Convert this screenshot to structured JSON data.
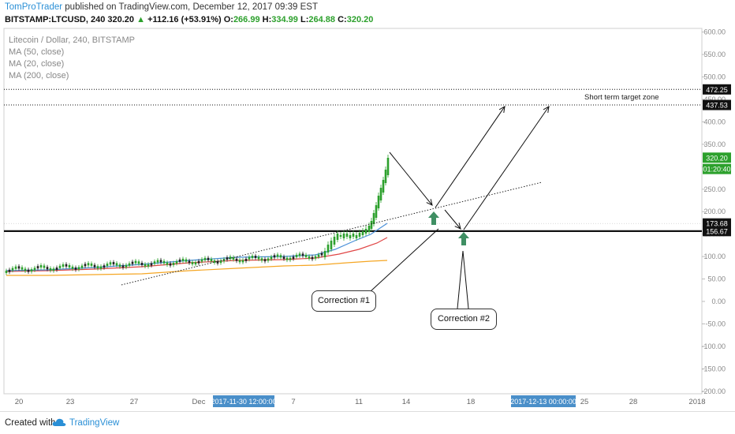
{
  "header": {
    "author": "TomProTrader",
    "published": "published on TradingView.com, December 12, 2017 09:39 EST",
    "symbol": "BITSTAMP:LTCUSD, 240",
    "last": "320.20",
    "change_arrow": "▲",
    "change": "+112.16 (+53.91%)",
    "o_label": "O:",
    "o_val": "266.99",
    "h_label": "H:",
    "h_val": "334.99",
    "l_label": "L:",
    "l_val": "264.88",
    "c_label": "C:",
    "c_val": "320.20"
  },
  "legend": {
    "title": "Litecoin / Dollar, 240, BITSTAMP",
    "ma50": "MA (50, close)",
    "ma20": "MA (20, close)",
    "ma200": "MA (200, close)"
  },
  "annotations": {
    "target_zone": "Short term target zone",
    "correction1": "Correction #1",
    "correction2": "Correction #2"
  },
  "footer": {
    "created_with": "Created with",
    "brand": "TradingView"
  },
  "colors": {
    "up": "#2ca02c",
    "down": "#222222",
    "ma50": "#e04646",
    "ma20": "#4a90d9",
    "ma200": "#f5a623",
    "arrow_green": "#3f8f63",
    "price_badge_bg": "#2ca02c",
    "axis_highlight": "#4a8fc9"
  },
  "chart_data": {
    "type": "candlestick",
    "y_ticks": [
      "600.00",
      "550.00",
      "500.00",
      "450.00",
      "400.00",
      "350.00",
      "300.00",
      "250.00",
      "200.00",
      "150.00",
      "100.00",
      "50.00",
      "0.00",
      "-50.00",
      "-100.00",
      "-150.00",
      "-200.00"
    ],
    "ylim": [
      -200,
      600
    ],
    "x_ticks": [
      "20",
      "23",
      "27",
      "Dec",
      "7",
      "11",
      "14",
      "18",
      "25",
      "28",
      "2018"
    ],
    "x_highlights": [
      "2017-11-30 12:00:00",
      "2017-12-13 00:00:00"
    ],
    "price_labels": [
      {
        "text": "472.25",
        "value": 472.25
      },
      {
        "text": "437.53",
        "value": 437.53
      },
      {
        "text": "320.20",
        "value": 320.2,
        "current": true
      },
      {
        "text": "01:20:40",
        "value": 295,
        "countdown": true
      },
      {
        "text": "173.68",
        "value": 173.68
      },
      {
        "text": "156.67",
        "value": 156.67
      }
    ],
    "horizontal_levels": [
      {
        "value": 472.25,
        "style": "dotted"
      },
      {
        "value": 437.53,
        "style": "dotted"
      },
      {
        "value": 156.67,
        "style": "solid-thick"
      }
    ],
    "series": [
      {
        "name": "MA (50, close)",
        "color": "#e04646"
      },
      {
        "name": "MA (20, close)",
        "color": "#4a90d9"
      },
      {
        "name": "MA (200, close)",
        "color": "#f5a623"
      }
    ]
  }
}
